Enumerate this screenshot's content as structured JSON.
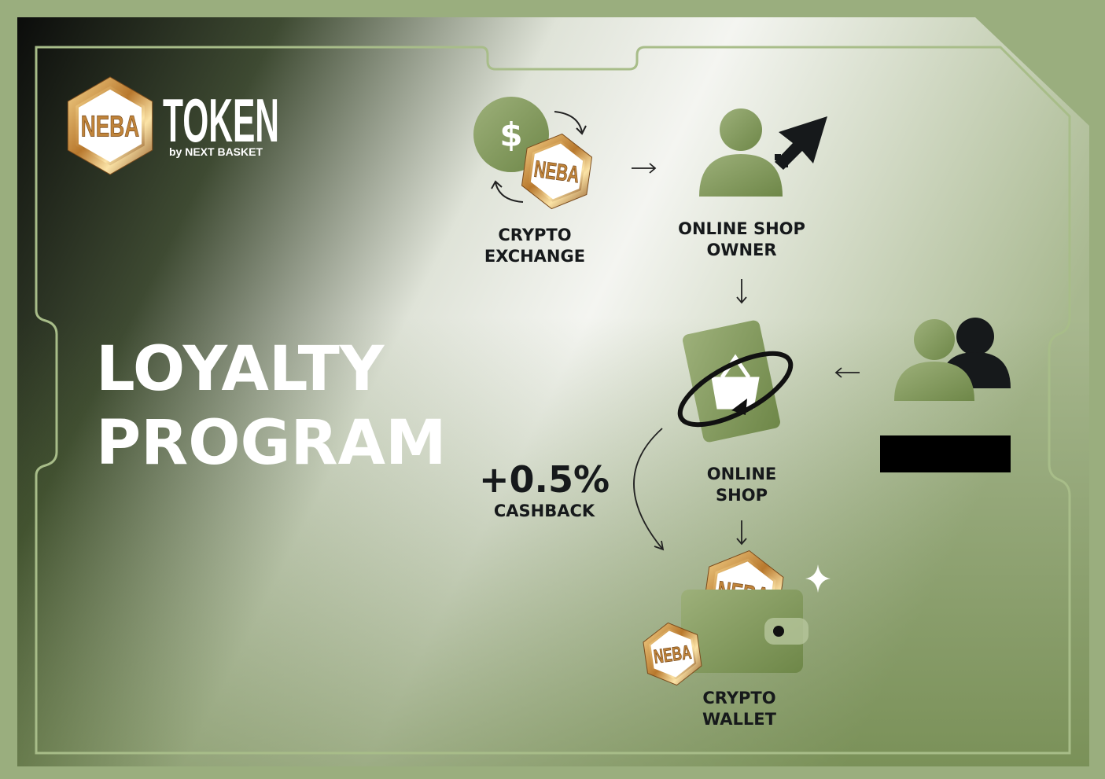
{
  "logo": {
    "mark": "NEBA",
    "name": "TOKEN",
    "byline": "by NEXT BASKET"
  },
  "headline": [
    "LOYALTY",
    "PROGRAM"
  ],
  "nodes": [
    {
      "icon": "$",
      "label": [
        "CRYPTO",
        "EXCHANGE"
      ]
    },
    {
      "label": [
        "ONLINE SHOP",
        "OWNER"
      ]
    },
    {
      "label": [
        "ONLINE",
        "SHOP"
      ]
    },
    {
      "label": [
        "CRYPTO",
        "WALLET"
      ]
    }
  ],
  "cashback": {
    "amount": "+0.5%",
    "label": "CASHBACK"
  }
}
